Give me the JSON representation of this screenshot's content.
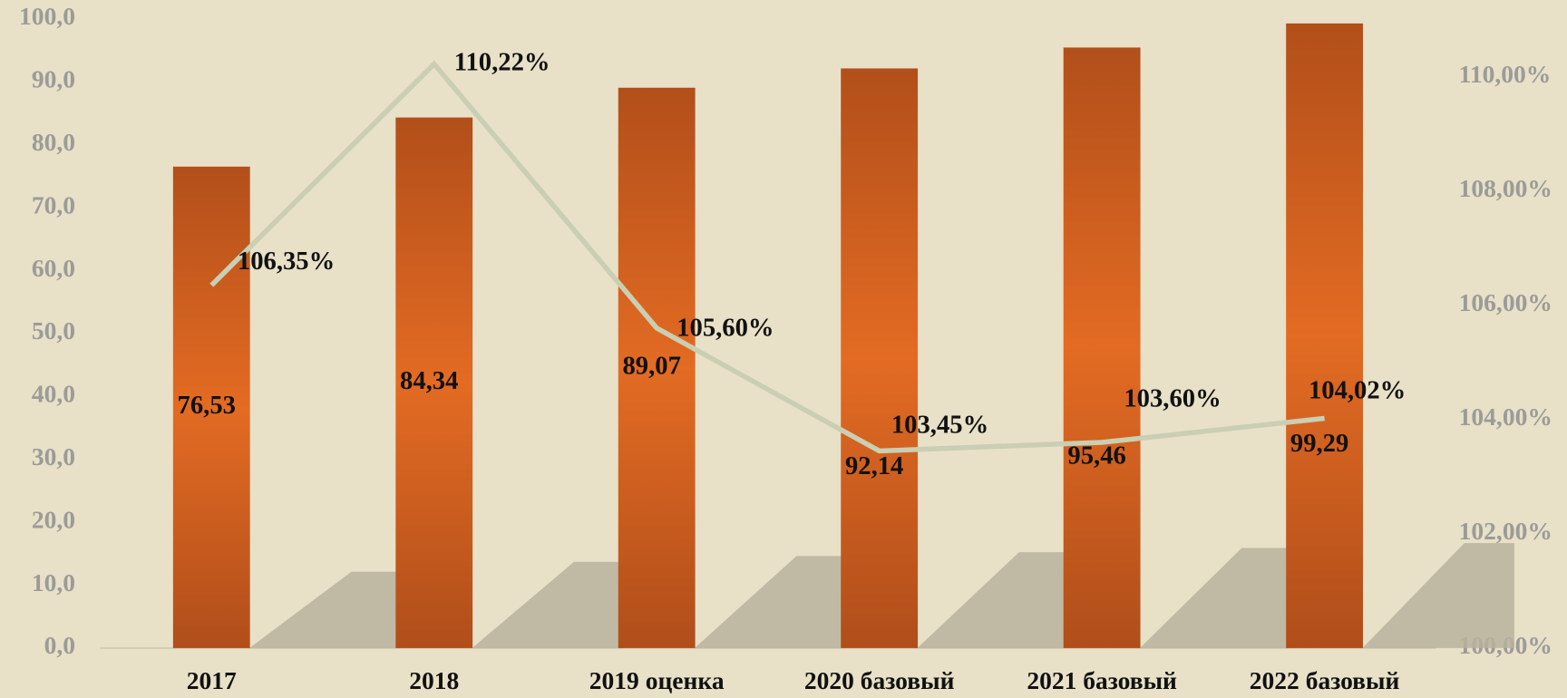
{
  "chart_data": {
    "type": "bar",
    "categories": [
      "2017",
      "2018",
      "2019 оценка",
      "2020 базовый",
      "2021 базовый",
      "2022 базовый"
    ],
    "series": [
      {
        "type": "bar",
        "color": "#e06a22",
        "values": [
          76.53,
          84.34,
          89.07,
          92.14,
          95.46,
          99.29
        ],
        "value_labels": [
          "76,53",
          "84,34",
          "89,07",
          "92,14",
          "95,46",
          "99,29"
        ]
      },
      {
        "type": "line",
        "axis": "y2",
        "color": "#c9cfb3",
        "values": [
          106.35,
          110.22,
          105.6,
          103.45,
          103.6,
          104.02
        ],
        "value_labels": [
          "106,35%",
          "110,22%",
          "105,60%",
          "103,45%",
          "103,60%",
          "104,02%"
        ]
      }
    ],
    "ylim": [
      0,
      100
    ],
    "yticks": [
      {
        "value": 0,
        "label": "0,0"
      },
      {
        "value": 10,
        "label": "10,0"
      },
      {
        "value": 20,
        "label": "20,0"
      },
      {
        "value": 30,
        "label": "30,0"
      },
      {
        "value": 40,
        "label": "40,0"
      },
      {
        "value": 50,
        "label": "50,0"
      },
      {
        "value": 60,
        "label": "60,0"
      },
      {
        "value": 70,
        "label": "70,0"
      },
      {
        "value": 80,
        "label": "80,0"
      },
      {
        "value": 90,
        "label": "90,0"
      },
      {
        "value": 100,
        "label": "100,0"
      }
    ],
    "y2lim": [
      100,
      111.01
    ],
    "y2ticks": [
      {
        "value": 100,
        "label": "100,00%"
      },
      {
        "value": 102,
        "label": "102,00%"
      },
      {
        "value": 104,
        "label": "104,00%"
      },
      {
        "value": 106,
        "label": "106,00%"
      },
      {
        "value": 108,
        "label": "108,00%"
      },
      {
        "value": 110,
        "label": "110,00%"
      }
    ]
  }
}
